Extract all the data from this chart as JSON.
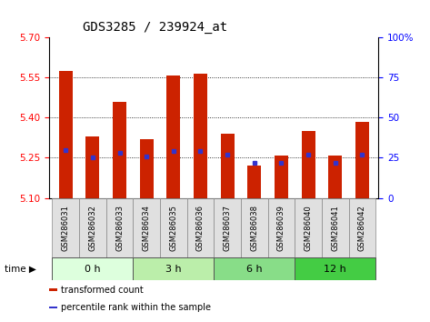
{
  "title": "GDS3285 / 239924_at",
  "samples": [
    "GSM286031",
    "GSM286032",
    "GSM286033",
    "GSM286034",
    "GSM286035",
    "GSM286036",
    "GSM286037",
    "GSM286038",
    "GSM286039",
    "GSM286040",
    "GSM286041",
    "GSM286042"
  ],
  "bar_values": [
    5.575,
    5.33,
    5.46,
    5.32,
    5.555,
    5.565,
    5.34,
    5.22,
    5.26,
    5.35,
    5.26,
    5.385
  ],
  "percentile_values": [
    30,
    25,
    28,
    26,
    29,
    29,
    27,
    22,
    22,
    27,
    22,
    27
  ],
  "bar_bottom": 5.1,
  "ylim_left": [
    5.1,
    5.7
  ],
  "ylim_right": [
    0,
    100
  ],
  "yticks_left": [
    5.1,
    5.25,
    5.4,
    5.55,
    5.7
  ],
  "yticks_right": [
    0,
    25,
    50,
    75,
    100
  ],
  "grid_lines": [
    5.25,
    5.4,
    5.55
  ],
  "bar_color": "#cc2200",
  "percentile_color": "#3333cc",
  "time_groups": [
    {
      "label": "0 h",
      "indices": [
        0,
        1,
        2
      ],
      "color": "#ddffdd"
    },
    {
      "label": "3 h",
      "indices": [
        3,
        4,
        5
      ],
      "color": "#bbeeaa"
    },
    {
      "label": "6 h",
      "indices": [
        6,
        7,
        8
      ],
      "color": "#88dd88"
    },
    {
      "label": "12 h",
      "indices": [
        9,
        10,
        11
      ],
      "color": "#44cc44"
    }
  ],
  "legend_items": [
    {
      "label": "transformed count",
      "color": "#cc2200"
    },
    {
      "label": "percentile rank within the sample",
      "color": "#3333cc"
    }
  ],
  "title_fontsize": 10,
  "tick_fontsize": 7.5,
  "label_fontsize": 6,
  "bar_width": 0.5
}
